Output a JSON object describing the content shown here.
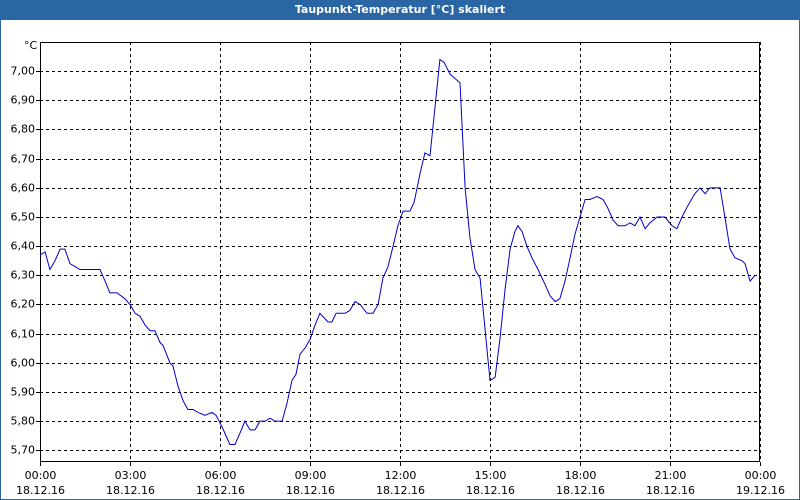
{
  "chart_data": {
    "type": "line",
    "title": "Taupunkt-Temperatur [°C] skaliert",
    "y_label": "°C",
    "color": "#0000cc",
    "x": [
      0,
      0.17,
      0.33,
      0.5,
      0.67,
      0.83,
      1,
      1.17,
      1.33,
      2,
      2.17,
      2.33,
      2.57,
      2.83,
      3,
      3.17,
      3.33,
      3.5,
      3.67,
      3.83,
      4,
      4.1,
      4.33,
      4.43,
      4.6,
      4.77,
      4.93,
      5.1,
      5.27,
      5.5,
      5.73,
      5.87,
      6.07,
      6.2,
      6.33,
      6.5,
      6.67,
      6.83,
      7,
      7.17,
      7.33,
      7.5,
      7.67,
      7.83,
      8.07,
      8.23,
      8.4,
      8.53,
      8.67,
      8.83,
      9,
      9.17,
      9.33,
      9.6,
      9.73,
      9.87,
      10.17,
      10.33,
      10.5,
      10.67,
      10.9,
      11.1,
      11.27,
      11.43,
      11.6,
      11.77,
      11.93,
      12.1,
      12.33,
      12.47,
      12.67,
      12.83,
      13,
      13.17,
      13.33,
      13.47,
      13.67,
      14,
      14.17,
      14.33,
      14.5,
      14.67,
      14.83,
      15,
      15.17,
      15.33,
      15.5,
      15.67,
      15.83,
      15.93,
      16.07,
      16.23,
      16.4,
      16.6,
      16.83,
      17,
      17.17,
      17.33,
      17.5,
      17.67,
      17.83,
      18,
      18.17,
      18.33,
      18.57,
      18.77,
      18.93,
      19.1,
      19.27,
      19.5,
      19.67,
      19.83,
      20,
      20.17,
      20.33,
      20.57,
      20.83,
      21.07,
      21.23,
      21.4,
      21.6,
      21.83,
      22,
      22.17,
      22.33,
      22.67,
      22.83,
      23,
      23.17,
      23.4,
      23.5,
      23.67,
      23.83
    ],
    "values": [
      6.37,
      6.38,
      6.32,
      6.35,
      6.39,
      6.39,
      6.34,
      6.33,
      6.32,
      6.32,
      6.28,
      6.24,
      6.24,
      6.22,
      6.2,
      6.17,
      6.16,
      6.13,
      6.11,
      6.11,
      6.07,
      6.06,
      6.0,
      5.99,
      5.92,
      5.87,
      5.84,
      5.84,
      5.83,
      5.82,
      5.83,
      5.82,
      5.78,
      5.75,
      5.72,
      5.72,
      5.76,
      5.8,
      5.77,
      5.77,
      5.8,
      5.8,
      5.81,
      5.8,
      5.8,
      5.86,
      5.94,
      5.96,
      6.03,
      6.05,
      6.08,
      6.13,
      6.17,
      6.14,
      6.14,
      6.17,
      6.17,
      6.18,
      6.21,
      6.2,
      6.17,
      6.17,
      6.2,
      6.29,
      6.33,
      6.4,
      6.47,
      6.52,
      6.52,
      6.55,
      6.65,
      6.72,
      6.71,
      6.88,
      7.04,
      7.03,
      6.99,
      6.96,
      6.6,
      6.43,
      6.32,
      6.29,
      6.12,
      5.94,
      5.95,
      6.08,
      6.25,
      6.39,
      6.45,
      6.47,
      6.45,
      6.4,
      6.36,
      6.32,
      6.27,
      6.23,
      6.21,
      6.22,
      6.28,
      6.36,
      6.44,
      6.5,
      6.56,
      6.56,
      6.57,
      6.56,
      6.53,
      6.49,
      6.47,
      6.47,
      6.48,
      6.47,
      6.5,
      6.46,
      6.48,
      6.5,
      6.5,
      6.47,
      6.46,
      6.5,
      6.54,
      6.58,
      6.6,
      6.58,
      6.6,
      6.6,
      6.5,
      6.39,
      6.36,
      6.35,
      6.34,
      6.28,
      6.3
    ],
    "xlim": [
      0,
      24
    ],
    "xticks": [
      {
        "value": 0,
        "label": "00:00",
        "date": "18.12.16"
      },
      {
        "value": 3,
        "label": "03:00",
        "date": "18.12.16"
      },
      {
        "value": 6,
        "label": "06:00",
        "date": "18.12.16"
      },
      {
        "value": 9,
        "label": "09:00",
        "date": "18.12.16"
      },
      {
        "value": 12,
        "label": "12:00",
        "date": "18.12.16"
      },
      {
        "value": 15,
        "label": "15:00",
        "date": "18.12.16"
      },
      {
        "value": 18,
        "label": "18:00",
        "date": "18.12.16"
      },
      {
        "value": 21,
        "label": "21:00",
        "date": "18.12.16"
      },
      {
        "value": 24,
        "label": "00:00",
        "date": "19.12.16"
      }
    ],
    "ylim": [
      5.66,
      7.1
    ],
    "yticks": [
      {
        "value": 5.7,
        "label": "5,70"
      },
      {
        "value": 5.8,
        "label": "5,80"
      },
      {
        "value": 5.9,
        "label": "5,90"
      },
      {
        "value": 6.0,
        "label": "6,00"
      },
      {
        "value": 6.1,
        "label": "6,10"
      },
      {
        "value": 6.2,
        "label": "6,20"
      },
      {
        "value": 6.3,
        "label": "6,30"
      },
      {
        "value": 6.4,
        "label": "6,40"
      },
      {
        "value": 6.5,
        "label": "6,50"
      },
      {
        "value": 6.6,
        "label": "6,60"
      },
      {
        "value": 6.7,
        "label": "6,70"
      },
      {
        "value": 6.8,
        "label": "6,80"
      },
      {
        "value": 6.9,
        "label": "6,90"
      },
      {
        "value": 7.0,
        "label": "7,00"
      }
    ],
    "grid": true
  }
}
